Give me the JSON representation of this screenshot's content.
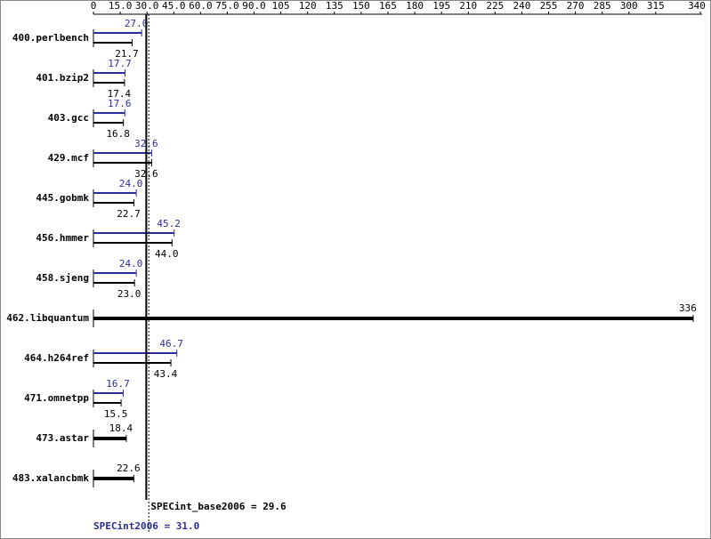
{
  "chart_data": {
    "type": "bar",
    "categories": [
      "400.perlbench",
      "401.bzip2",
      "403.gcc",
      "429.mcf",
      "445.gobmk",
      "456.hmmer",
      "458.sjeng",
      "462.libquantum",
      "464.h264ref",
      "471.omnetpp",
      "473.astar",
      "483.xalancbmk"
    ],
    "series": [
      {
        "color": "#2d2d96",
        "values": [
          27.0,
          17.7,
          17.6,
          32.6,
          24.0,
          45.2,
          24.0,
          null,
          46.7,
          16.7,
          null,
          null
        ],
        "value_labels": [
          "27.0",
          "17.7",
          "17.6",
          "32.6",
          "24.0",
          "45.2",
          "24.0",
          null,
          "46.7",
          "16.7",
          null,
          null
        ]
      },
      {
        "color": "#000000",
        "values": [
          21.7,
          17.4,
          16.8,
          32.6,
          22.7,
          44.0,
          23.0,
          336,
          43.4,
          15.5,
          18.4,
          22.6
        ],
        "value_labels": [
          "21.7",
          "17.4",
          "16.8",
          "32.6",
          "22.7",
          "44.0",
          "23.0",
          "336",
          "43.4",
          "15.5",
          "18.4",
          "22.6"
        ]
      }
    ],
    "xlim": [
      0,
      340
    ],
    "xticks": [
      0,
      {
        "value": 15,
        "label": "15.0"
      },
      {
        "value": 30,
        "label": "30.0"
      },
      {
        "value": 45,
        "label": "45.0"
      },
      {
        "value": 60,
        "label": "60.0"
      },
      {
        "value": 75,
        "label": "75.0"
      },
      {
        "value": 90,
        "label": "90.0"
      },
      105,
      120,
      135,
      150,
      165,
      180,
      195,
      210,
      225,
      240,
      255,
      270,
      285,
      300,
      315,
      340
    ],
    "reference_lines": [
      {
        "label": "SPECint_base2006 = 29.6",
        "value": 29.6,
        "color": "#000000",
        "style": "solid"
      },
      {
        "label": "SPECint2006 = 31.0",
        "value": 31.0,
        "color": "#2d2d96",
        "style": "dotted"
      }
    ]
  }
}
